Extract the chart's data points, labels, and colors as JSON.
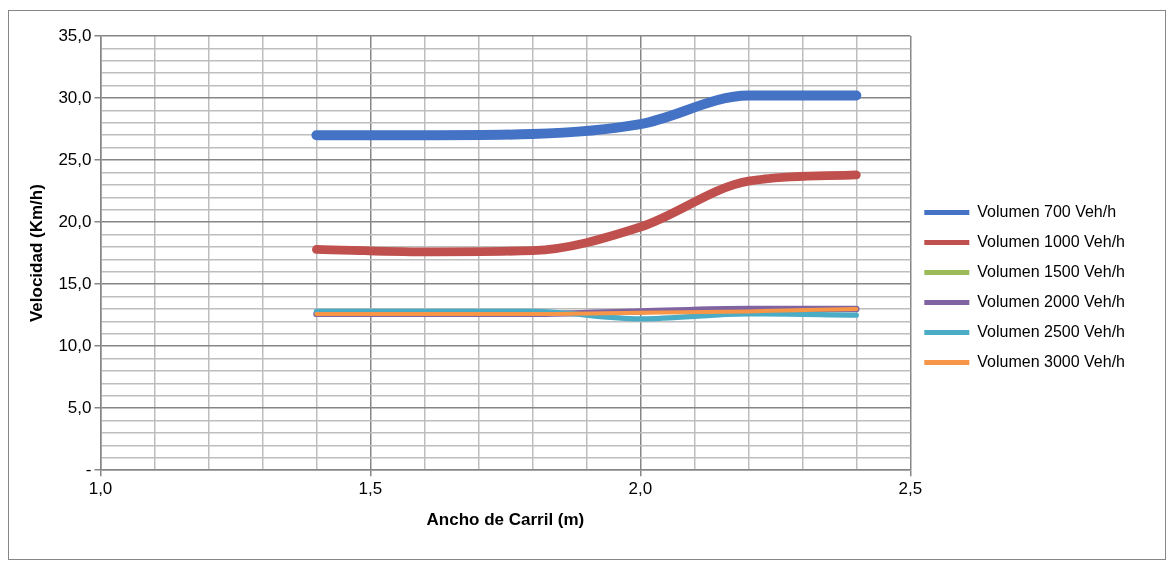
{
  "chart_data": {
    "type": "line",
    "xlabel": "Ancho de Carril (m)",
    "ylabel": "Velocidad (Km/h)",
    "x": [
      1.4,
      1.6,
      1.8,
      2.0,
      2.2,
      2.4
    ],
    "series": [
      {
        "name": "Volumen 700 Veh/h",
        "color": "#4472c4",
        "values": [
          27.0,
          27.0,
          27.1,
          27.9,
          30.2,
          30.2
        ]
      },
      {
        "name": "Volumen 1000 Veh/h",
        "color": "#c0504d",
        "values": [
          17.8,
          17.6,
          17.7,
          19.6,
          23.3,
          23.8
        ]
      },
      {
        "name": "Volumen 1500 Veh/h",
        "color": "#9bbb59",
        "values": [
          null,
          null,
          null,
          null,
          null,
          null
        ]
      },
      {
        "name": "Volumen 2000 Veh/h",
        "color": "#8064a2",
        "values": [
          12.6,
          12.6,
          12.6,
          12.8,
          13.0,
          13.0
        ]
      },
      {
        "name": "Volumen 2500 Veh/h",
        "color": "#4bacc6",
        "values": [
          12.8,
          12.8,
          12.8,
          12.2,
          12.6,
          12.5
        ]
      },
      {
        "name": "Volumen 3000 Veh/h",
        "color": "#f79646",
        "values": [
          12.6,
          12.6,
          12.6,
          12.7,
          12.8,
          13.0
        ]
      }
    ],
    "xlim": [
      1.0,
      2.5
    ],
    "xticks": [
      {
        "value": 1.0,
        "label": "1,0"
      },
      {
        "value": 1.1,
        "label": null
      },
      {
        "value": 1.2,
        "label": null
      },
      {
        "value": 1.3,
        "label": null
      },
      {
        "value": 1.4,
        "label": null
      },
      {
        "value": 1.5,
        "label": "1,5"
      },
      {
        "value": 1.6,
        "label": null
      },
      {
        "value": 1.7,
        "label": null
      },
      {
        "value": 1.8,
        "label": null
      },
      {
        "value": 1.9,
        "label": null
      },
      {
        "value": 2.0,
        "label": "2,0"
      },
      {
        "value": 2.1,
        "label": null
      },
      {
        "value": 2.2,
        "label": null
      },
      {
        "value": 2.3,
        "label": null
      },
      {
        "value": 2.4,
        "label": null
      },
      {
        "value": 2.5,
        "label": "2,5"
      }
    ],
    "ylim": [
      0,
      35
    ],
    "yticks": [
      {
        "value": 0,
        "label": "-"
      },
      {
        "value": 1,
        "label": null
      },
      {
        "value": 2,
        "label": null
      },
      {
        "value": 3,
        "label": null
      },
      {
        "value": 4,
        "label": null
      },
      {
        "value": 5,
        "label": "5,0"
      },
      {
        "value": 6,
        "label": null
      },
      {
        "value": 7,
        "label": null
      },
      {
        "value": 8,
        "label": null
      },
      {
        "value": 9,
        "label": null
      },
      {
        "value": 10,
        "label": "10,0"
      },
      {
        "value": 11,
        "label": null
      },
      {
        "value": 12,
        "label": null
      },
      {
        "value": 13,
        "label": null
      },
      {
        "value": 14,
        "label": null
      },
      {
        "value": 15,
        "label": "15,0"
      },
      {
        "value": 16,
        "label": null
      },
      {
        "value": 17,
        "label": null
      },
      {
        "value": 18,
        "label": null
      },
      {
        "value": 19,
        "label": null
      },
      {
        "value": 20,
        "label": "20,0"
      },
      {
        "value": 21,
        "label": null
      },
      {
        "value": 22,
        "label": null
      },
      {
        "value": 23,
        "label": null
      },
      {
        "value": 24,
        "label": null
      },
      {
        "value": 25,
        "label": "25,0"
      },
      {
        "value": 26,
        "label": null
      },
      {
        "value": 27,
        "label": null
      },
      {
        "value": 28,
        "label": null
      },
      {
        "value": 29,
        "label": null
      },
      {
        "value": 30,
        "label": "30,0"
      },
      {
        "value": 31,
        "label": null
      },
      {
        "value": 32,
        "label": null
      },
      {
        "value": 33,
        "label": null
      },
      {
        "value": 34,
        "label": null
      },
      {
        "value": 35,
        "label": "35,0"
      }
    ],
    "grid": true,
    "legend": "right",
    "marker": "none",
    "line_style": "solid"
  }
}
